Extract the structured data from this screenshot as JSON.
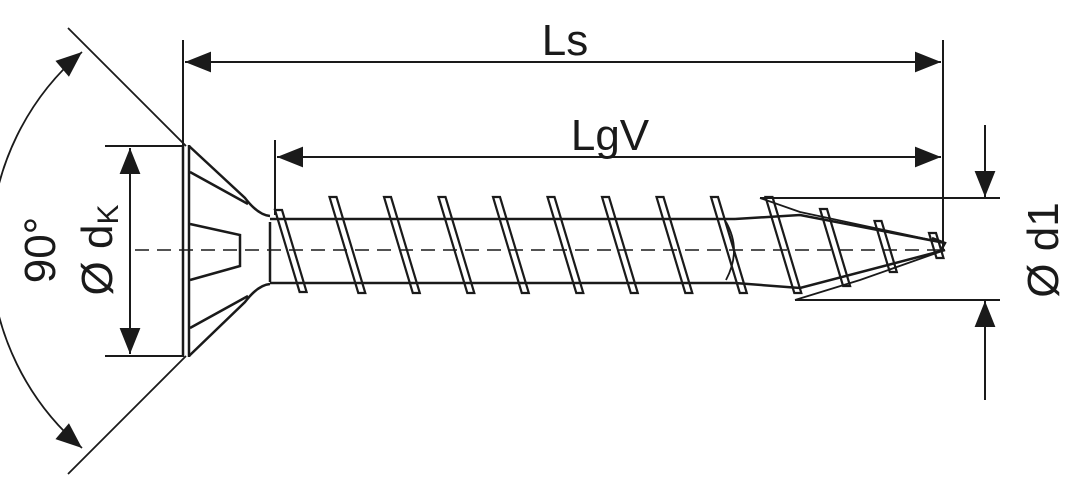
{
  "labels": {
    "ls": "Ls",
    "lgv": "LgV",
    "angle": "90°",
    "head_diameter": "Ø d",
    "head_diameter_sub": "K",
    "thread_diameter": "Ø d1"
  },
  "colors": {
    "line": "#1a1a1a",
    "background": "#ffffff"
  },
  "thread_count": 13
}
